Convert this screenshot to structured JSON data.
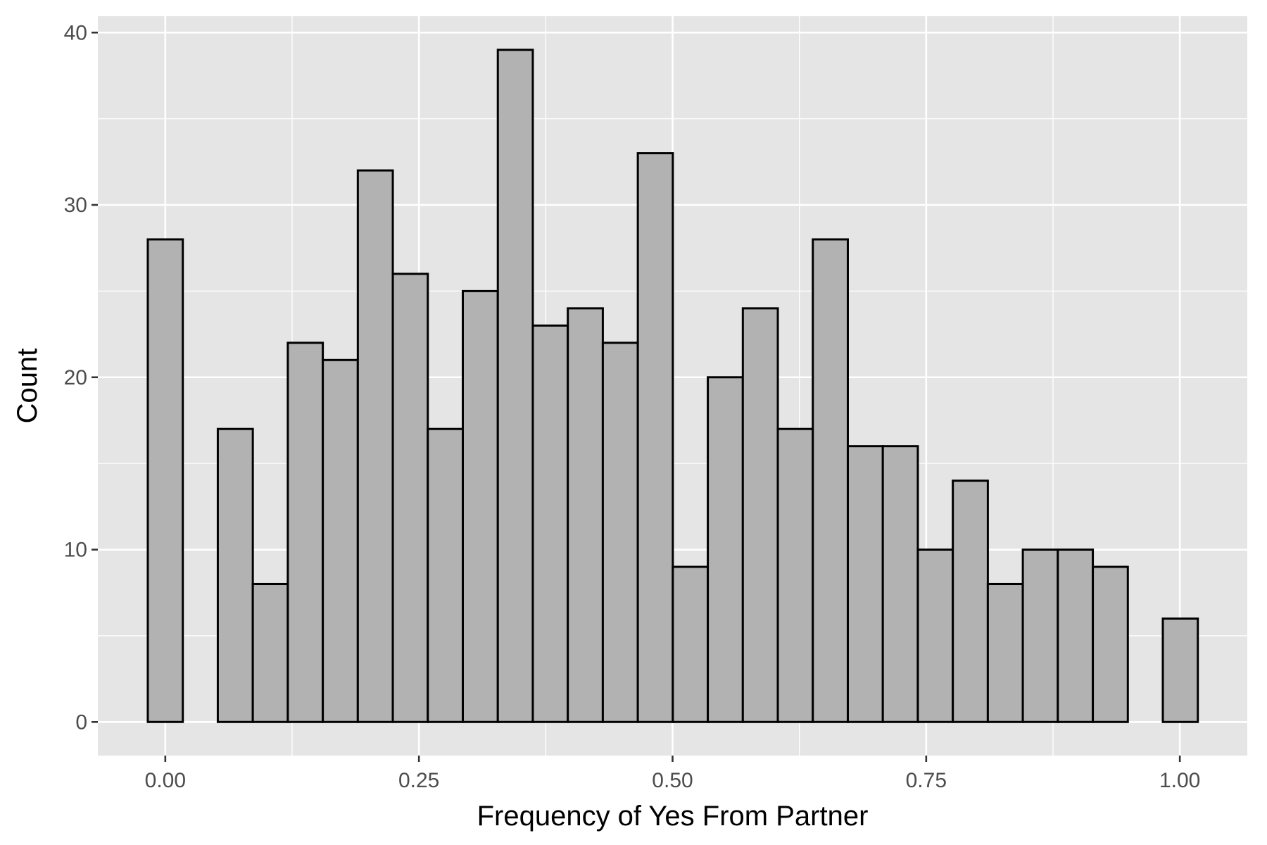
{
  "chart_data": {
    "type": "bar",
    "subtype": "histogram",
    "title": "",
    "xlabel": "Frequency of Yes From Partner",
    "ylabel": "Count",
    "bin_width": 0.0345,
    "bin_start": -0.01725,
    "bin_centers": [
      0.0,
      0.0345,
      0.069,
      0.1034,
      0.1379,
      0.1724,
      0.2069,
      0.2414,
      0.2759,
      0.3103,
      0.3448,
      0.3793,
      0.4138,
      0.4483,
      0.4828,
      0.5172,
      0.5517,
      0.5862,
      0.6207,
      0.6552,
      0.6897,
      0.7241,
      0.7586,
      0.7931,
      0.8276,
      0.8621,
      0.8966,
      0.931,
      0.9655,
      1.0
    ],
    "values": [
      28,
      0,
      17,
      8,
      22,
      21,
      32,
      26,
      17,
      25,
      39,
      23,
      24,
      22,
      33,
      9,
      20,
      24,
      17,
      28,
      16,
      16,
      10,
      14,
      8,
      10,
      10,
      9,
      0,
      6
    ],
    "xlim": [
      -0.0665,
      1.0665
    ],
    "ylim": [
      -1.95,
      40.95
    ],
    "x_ticks": [
      0.0,
      0.25,
      0.5,
      0.75,
      1.0
    ],
    "x_tick_labels": [
      "0.00",
      "0.25",
      "0.50",
      "0.75",
      "1.00"
    ],
    "x_minor_ticks": [
      0.125,
      0.375,
      0.625,
      0.875
    ],
    "y_ticks": [
      0,
      10,
      20,
      30,
      40
    ],
    "y_tick_labels": [
      "0",
      "10",
      "20",
      "30",
      "40"
    ],
    "y_minor_ticks": [
      5,
      15,
      25,
      35
    ],
    "grid": true,
    "legend": "none",
    "colors": {
      "panel_background": "#e5e5e5",
      "grid_line": "#ffffff",
      "bar_fill": "#b2b2b2",
      "bar_outline": "#000000",
      "tick_label": "#4d4d4d",
      "tick_mark": "#333333",
      "axis_title": "#000000"
    }
  }
}
